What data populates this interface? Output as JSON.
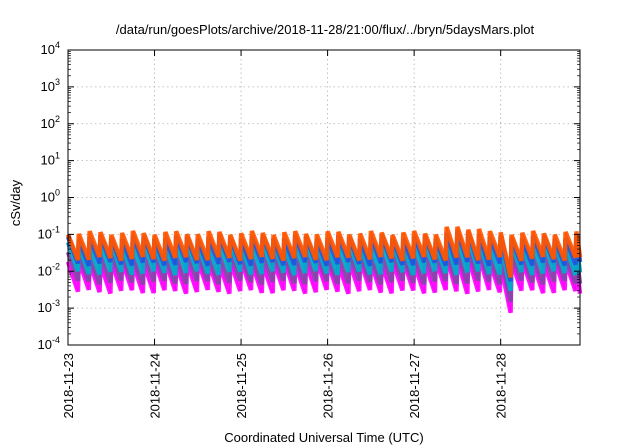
{
  "chart_data": {
    "type": "area",
    "title": "/data/run/goesPlots/archive/2018-11-28/21:00/flux/../bryn/5daysMars.plot",
    "xlabel": "Coordinated Universal Time (UTC)",
    "ylabel": "cSv/day",
    "x_ticks": [
      "2018-11-23",
      "2018-11-24",
      "2018-11-25",
      "2018-11-26",
      "2018-11-27",
      "2018-11-28"
    ],
    "xlim": [
      "2018-11-23T00:00",
      "2018-11-28T22:00"
    ],
    "ylim": [
      0.0001,
      10000
    ],
    "yscale": "log",
    "y_ticks": [
      {
        "base": "10",
        "exp": "-4"
      },
      {
        "base": "10",
        "exp": "-3"
      },
      {
        "base": "10",
        "exp": "-2"
      },
      {
        "base": "10",
        "exp": "-1"
      },
      {
        "base": "10",
        "exp": "0"
      },
      {
        "base": "10",
        "exp": "1"
      },
      {
        "base": "10",
        "exp": "2"
      },
      {
        "base": "10",
        "exp": "3"
      },
      {
        "base": "10",
        "exp": "4"
      }
    ],
    "grid": true,
    "sawtooth_period_hours": 3,
    "series": [
      {
        "color": "#ff00ff",
        "peak": 0.018,
        "trough": 0.0028
      },
      {
        "color": "#8844aa",
        "peak": 0.03,
        "trough": 0.005
      },
      {
        "color": "#00aacc",
        "peak": 0.055,
        "trough": 0.009
      },
      {
        "color": "#2255dd",
        "peak": 0.085,
        "trough": 0.016
      },
      {
        "color": "#ff5500",
        "peak": 0.11,
        "trough": 0.022
      }
    ],
    "features": [
      {
        "x": "2018-11-27T09:00",
        "note": "elevated peaks",
        "peak_scale": 1.35
      },
      {
        "x": "2018-11-28T00:00",
        "note": "deep dip",
        "trough_scale": 0.3
      }
    ]
  }
}
